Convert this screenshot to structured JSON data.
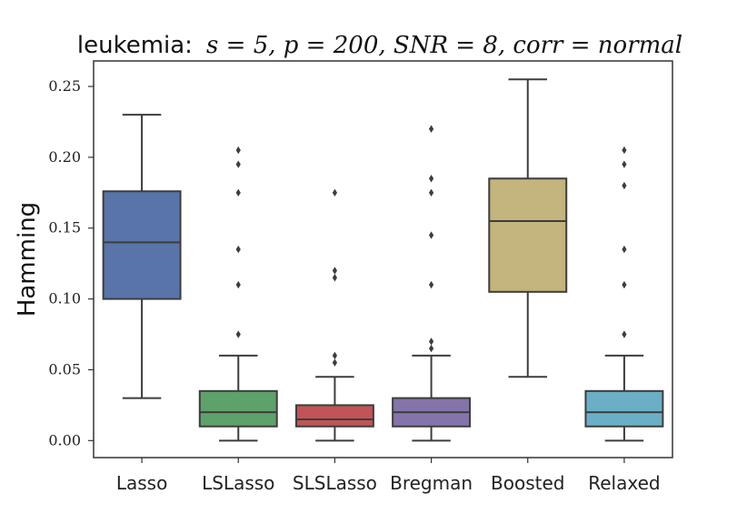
{
  "chart_data": {
    "type": "box",
    "title_prefix": "leukemia:",
    "title_math": "s = 5, p = 200, SNR = 8, corr = normal",
    "xlabel": "",
    "ylabel": "Hamming",
    "ylim": [
      -0.012,
      0.268
    ],
    "yticks": [
      0.0,
      0.05,
      0.1,
      0.15,
      0.2,
      0.25
    ],
    "ytick_labels": [
      "0.00",
      "0.05",
      "0.10",
      "0.15",
      "0.20",
      "0.25"
    ],
    "categories": [
      "Lasso",
      "LSLasso",
      "SLSLasso",
      "Bregman",
      "Boosted",
      "Relaxed"
    ],
    "boxes": [
      {
        "name": "Lasso",
        "color": "#5874a9",
        "whislo": 0.03,
        "q1": 0.1,
        "median": 0.14,
        "q3": 0.176,
        "whishi": 0.23,
        "fliers": []
      },
      {
        "name": "LSLasso",
        "color": "#5ea16a",
        "whislo": 0.0,
        "q1": 0.01,
        "median": 0.02,
        "q3": 0.035,
        "whishi": 0.06,
        "fliers": [
          0.075,
          0.11,
          0.135,
          0.175,
          0.195,
          0.205
        ]
      },
      {
        "name": "SLSLasso",
        "color": "#c05457",
        "whislo": 0.0,
        "q1": 0.01,
        "median": 0.015,
        "q3": 0.025,
        "whishi": 0.045,
        "fliers": [
          0.055,
          0.06,
          0.115,
          0.12,
          0.175
        ]
      },
      {
        "name": "Bregman",
        "color": "#8474aa",
        "whislo": 0.0,
        "q1": 0.01,
        "median": 0.02,
        "q3": 0.03,
        "whishi": 0.06,
        "fliers": [
          0.065,
          0.07,
          0.11,
          0.145,
          0.175,
          0.185,
          0.22
        ]
      },
      {
        "name": "Boosted",
        "color": "#c4b47d",
        "whislo": 0.045,
        "q1": 0.105,
        "median": 0.155,
        "q3": 0.185,
        "whishi": 0.255,
        "fliers": []
      },
      {
        "name": "Relaxed",
        "color": "#6aafc6",
        "whislo": 0.0,
        "q1": 0.01,
        "median": 0.02,
        "q3": 0.035,
        "whishi": 0.06,
        "fliers": [
          0.075,
          0.11,
          0.135,
          0.18,
          0.195,
          0.205
        ]
      }
    ]
  }
}
